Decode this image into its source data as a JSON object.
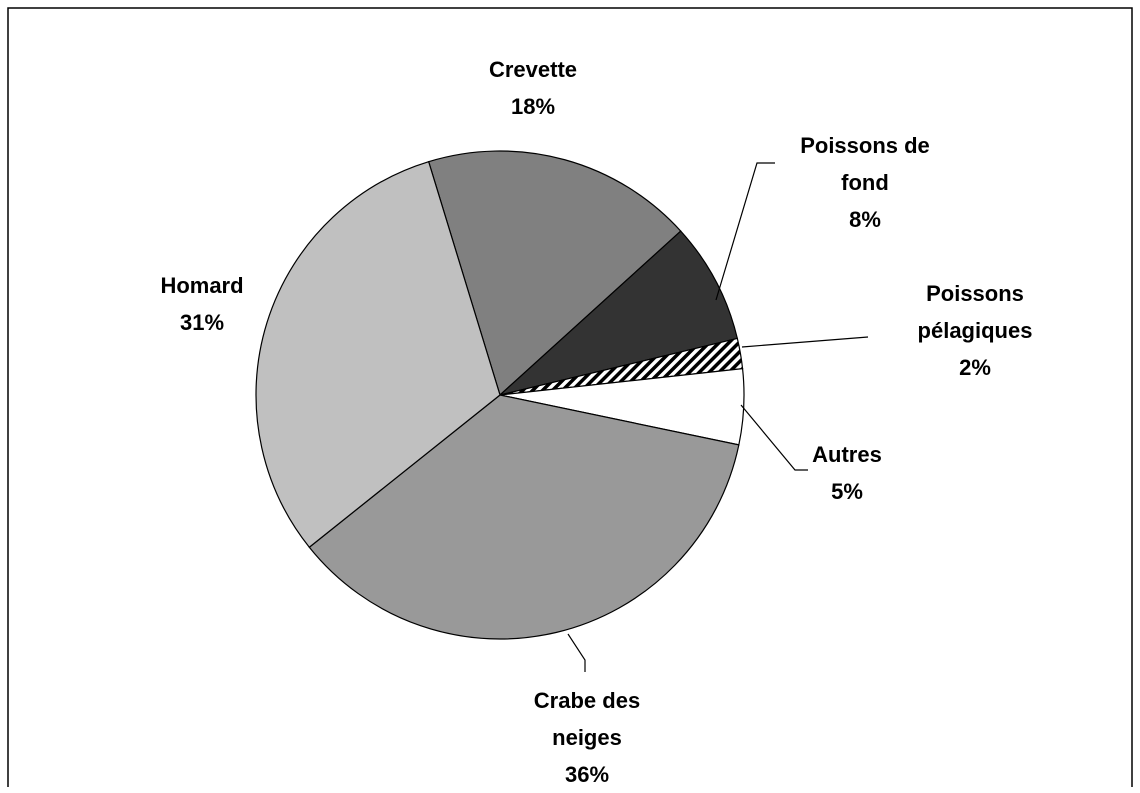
{
  "chart_data": {
    "type": "pie",
    "categories": [
      "Crevette",
      "Poissons de fond",
      "Poissons pélagiques",
      "Autres",
      "Crabe des neiges",
      "Homard"
    ],
    "values": [
      18,
      8,
      2,
      5,
      36,
      31
    ],
    "value_labels": [
      "18%",
      "8%",
      "2%",
      "5%",
      "36%",
      "31%"
    ],
    "colors": [
      "#808080",
      "#333333",
      "#ffffff",
      "#ffffff",
      "#999999",
      "#c0c0c0"
    ],
    "patterns": [
      "solid",
      "solid",
      "diagonal",
      "solid",
      "solid",
      "solid"
    ]
  }
}
